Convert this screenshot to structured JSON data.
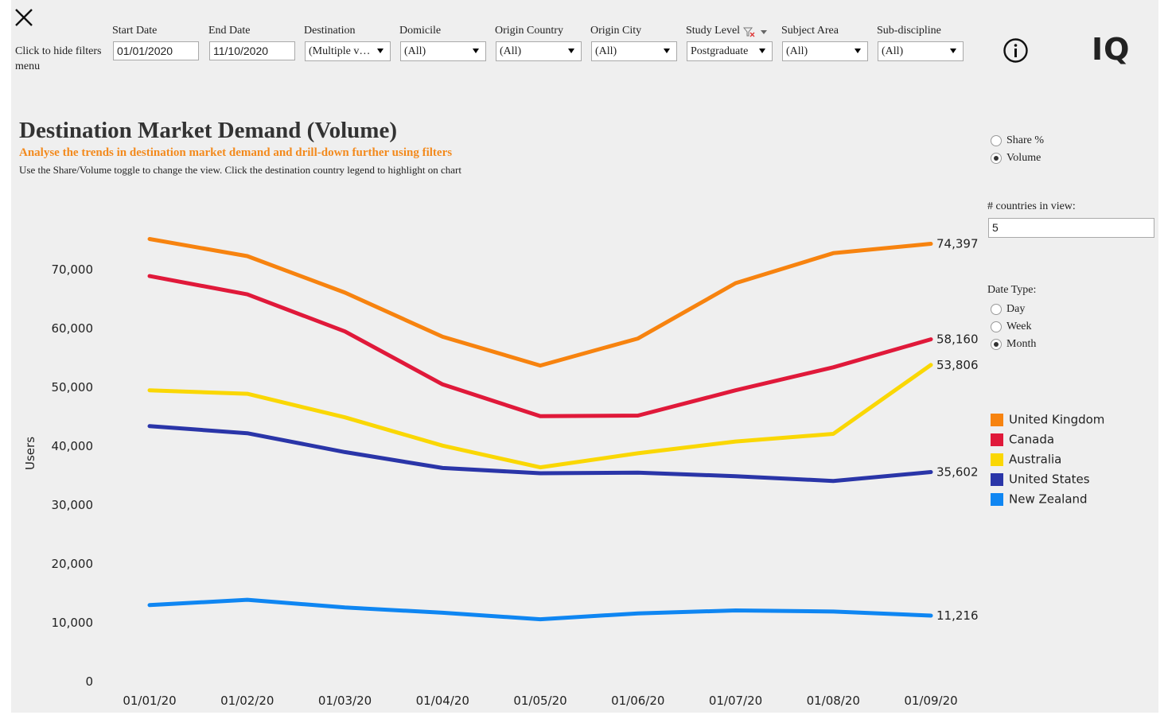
{
  "close": {
    "icon": "close-icon"
  },
  "filters": {
    "hide_label": "Click to hide filters menu",
    "start_date": {
      "label": "Start Date",
      "value": "01/01/2020"
    },
    "end_date": {
      "label": "End Date",
      "value": "11/10/2020"
    },
    "destination": {
      "label": "Destination",
      "value": "(Multiple v…"
    },
    "domicile": {
      "label": "Domicile",
      "value": "(All)"
    },
    "origin_country": {
      "label": "Origin Country",
      "value": "(All)"
    },
    "origin_city": {
      "label": "Origin City",
      "value": "(All)"
    },
    "study_level": {
      "label": "Study Level",
      "value": "Postgraduate"
    },
    "subject_area": {
      "label": "Subject Area",
      "value": "(All)"
    },
    "sub_discipline": {
      "label": "Sub-discipline",
      "value": "(All)"
    }
  },
  "header": {
    "info_icon": "info-icon",
    "logo": "IQ"
  },
  "title": "Destination Market Demand (Volume)",
  "subtitle": "Analyse the trends in destination market demand and drill-down further using filters",
  "instructions": "Use the Share/Volume toggle to change the view. Click the destination country legend to highlight on chart",
  "view_toggle": {
    "share_label": "Share %",
    "volume_label": "Volume",
    "selected": "Volume"
  },
  "countries_in_view": {
    "label": "# countries in view:",
    "value": "5"
  },
  "date_type": {
    "label": "Date Type:",
    "day": "Day",
    "week": "Week",
    "month": "Month",
    "selected": "Month"
  },
  "colors": {
    "uk": "#f7830f",
    "canada": "#e0193a",
    "australia": "#fad704",
    "us": "#2a35a8",
    "nz": "#0f86f2"
  },
  "chart_data": {
    "type": "line",
    "title": "Destination Market Demand (Volume)",
    "xlabel": "",
    "ylabel": "Users",
    "x": [
      "01/01/20",
      "01/02/20",
      "01/03/20",
      "01/04/20",
      "01/05/20",
      "01/06/20",
      "01/07/20",
      "01/08/20",
      "01/09/20"
    ],
    "yticks": [
      "0",
      "10,000",
      "20,000",
      "30,000",
      "40,000",
      "50,000",
      "60,000",
      "70,000"
    ],
    "ylim": [
      0,
      80000
    ],
    "series": [
      {
        "name": "United Kingdom",
        "color": "#f7830f",
        "values": [
          75200,
          72300,
          66100,
          58600,
          53700,
          58300,
          67700,
          72800,
          74397
        ],
        "end_label": "74,397"
      },
      {
        "name": "Canada",
        "color": "#e0193a",
        "values": [
          68900,
          65800,
          59500,
          50500,
          45100,
          45200,
          49500,
          53400,
          58160
        ],
        "end_label": "58,160"
      },
      {
        "name": "Australia",
        "color": "#fad704",
        "values": [
          49500,
          48900,
          44900,
          40100,
          36400,
          38800,
          40800,
          42100,
          53806
        ],
        "end_label": "53,806"
      },
      {
        "name": "United States",
        "color": "#2a35a8",
        "values": [
          43400,
          42200,
          39000,
          36300,
          35400,
          35500,
          34900,
          34100,
          35602
        ],
        "end_label": "35,602"
      },
      {
        "name": "New Zealand",
        "color": "#0f86f2",
        "values": [
          13000,
          13900,
          12600,
          11700,
          10600,
          11600,
          12100,
          11900,
          11216
        ],
        "end_label": "11,216"
      }
    ]
  }
}
